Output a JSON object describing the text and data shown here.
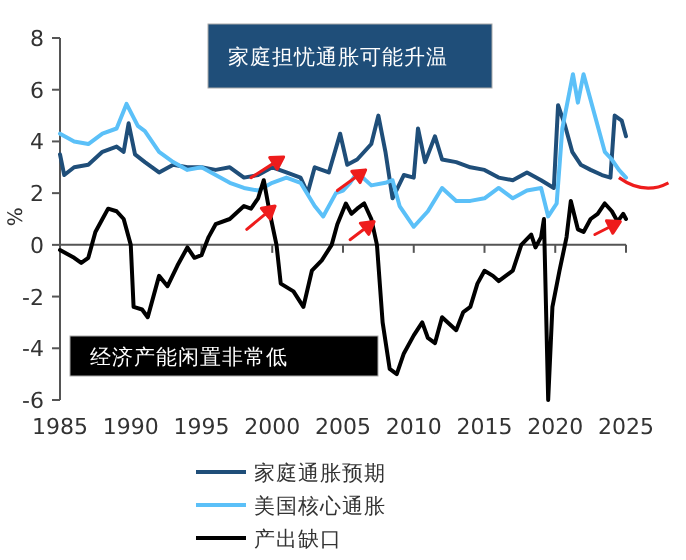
{
  "chart_data": {
    "type": "line",
    "ylabel": "%",
    "annotations": [
      "家庭担忧通胀可能升温",
      "经济产能闲置非常低"
    ],
    "xlim": [
      1985,
      2025
    ],
    "xticks": [
      1985,
      1990,
      1995,
      2000,
      2005,
      2010,
      2015,
      2020,
      2025
    ],
    "ylim": [
      -6,
      8
    ],
    "yticks": [
      -6,
      -4,
      -2,
      0,
      2,
      4,
      6,
      8
    ],
    "legend": "bottom",
    "line_style": "solid",
    "series": [
      {
        "name": "家庭通胀预期",
        "color": "#1f4e79",
        "x": [
          1985,
          1985.3,
          1986,
          1987,
          1988,
          1989,
          1989.5,
          1989.85,
          1990.3,
          1991,
          1992,
          1993,
          1994,
          1995,
          1996,
          1997,
          1998,
          1999,
          2000,
          2001,
          2002,
          2002.5,
          2003,
          2004,
          2004.8,
          2005.3,
          2006,
          2007,
          2007.5,
          2008,
          2008.5,
          2009.3,
          2010,
          2010.3,
          2010.8,
          2011.5,
          2012,
          2013,
          2014,
          2015,
          2016,
          2017,
          2018,
          2019,
          2019.9,
          2020.2,
          2020.7,
          2021.2,
          2021.8,
          2022.5,
          2023.3,
          2023.9,
          2024.2,
          2024.7,
          2025
        ],
        "values": [
          3.5,
          2.7,
          3.0,
          3.1,
          3.6,
          3.8,
          3.6,
          4.7,
          3.5,
          3.2,
          2.8,
          3.1,
          3.0,
          3.0,
          2.9,
          3.0,
          2.6,
          2.7,
          3.0,
          2.8,
          2.6,
          2.0,
          3.0,
          2.8,
          4.3,
          3.1,
          3.3,
          3.9,
          5.0,
          3.6,
          1.8,
          2.7,
          2.6,
          4.5,
          3.2,
          4.2,
          3.3,
          3.2,
          3.0,
          2.9,
          2.6,
          2.5,
          2.8,
          2.5,
          2.2,
          5.4,
          4.6,
          3.6,
          3.1,
          2.9,
          2.7,
          2.6,
          5.0,
          4.8,
          4.2
        ]
      },
      {
        "name": "美国核心通胀",
        "color": "#5bc0f8",
        "x": [
          1985,
          1986,
          1987,
          1988,
          1989,
          1989.7,
          1990.5,
          1991,
          1992,
          1993,
          1994,
          1995,
          1996,
          1997,
          1998,
          1999,
          2000,
          2001,
          2002,
          2003,
          2003.6,
          2004.5,
          2005,
          2005.5,
          2006,
          2007,
          2008,
          2008.5,
          2009,
          2010,
          2011,
          2012,
          2013,
          2014,
          2015,
          2016,
          2017,
          2018,
          2019,
          2019.5,
          2020.1,
          2020.5,
          2021.25,
          2021.6,
          2022,
          2022.8,
          2023.5,
          2024,
          2024.5,
          2025
        ],
        "values": [
          4.3,
          4.0,
          3.9,
          4.3,
          4.5,
          5.45,
          4.6,
          4.4,
          3.6,
          3.2,
          2.9,
          3.0,
          2.7,
          2.4,
          2.2,
          2.1,
          2.4,
          2.6,
          2.4,
          1.5,
          1.1,
          2.0,
          2.1,
          2.4,
          2.8,
          2.3,
          2.4,
          2.5,
          1.5,
          0.7,
          1.3,
          2.2,
          1.7,
          1.7,
          1.8,
          2.2,
          1.8,
          2.1,
          2.2,
          1.1,
          1.6,
          4.5,
          6.6,
          5.5,
          6.6,
          5.0,
          3.6,
          3.3,
          2.9,
          2.6
        ]
      },
      {
        "name": "产出缺口",
        "color": "#000000",
        "x": [
          1985,
          1986,
          1986.5,
          1987,
          1987.5,
          1988,
          1988.4,
          1989,
          1989.5,
          1990.0,
          1990.2,
          1990.8,
          1991.2,
          1992,
          1992.6,
          1993.3,
          1994,
          1994.5,
          1995,
          1995.5,
          1996,
          1997,
          1998,
          1998.5,
          1999,
          1999.4,
          1999.8,
          2000.3,
          2000.6,
          2001.5,
          2002.2,
          2002.8,
          2003.5,
          2004.2,
          2004.6,
          2005.2,
          2005.6,
          2006,
          2006.5,
          2007.0,
          2007.4,
          2007.8,
          2008.3,
          2008.8,
          2009.3,
          2010,
          2010.6,
          2011,
          2011.5,
          2012,
          2013,
          2013.5,
          2014,
          2014.5,
          2015,
          2015.6,
          2016,
          2016.5,
          2017,
          2017.6,
          2018.3,
          2018.6,
          2019,
          2019.2,
          2019.5,
          2019.8,
          2020.3,
          2020.8,
          2021.1,
          2021.6,
          2022,
          2022.5,
          2023,
          2023.5,
          2024,
          2024.4,
          2024.8,
          2025
        ],
        "values": [
          -0.2,
          -0.5,
          -0.7,
          -0.5,
          0.5,
          1.0,
          1.4,
          1.3,
          1.0,
          0.0,
          -2.4,
          -2.5,
          -2.8,
          -1.2,
          -1.6,
          -0.8,
          -0.1,
          -0.5,
          -0.4,
          0.3,
          0.8,
          1.0,
          1.5,
          1.4,
          1.8,
          2.5,
          1.3,
          0.0,
          -1.5,
          -1.8,
          -2.4,
          -1.0,
          -0.6,
          0.0,
          0.8,
          1.6,
          1.2,
          1.4,
          1.6,
          1.0,
          0.0,
          -3.0,
          -4.8,
          -5.0,
          -4.2,
          -3.5,
          -3.0,
          -3.6,
          -3.8,
          -2.8,
          -3.3,
          -2.6,
          -2.4,
          -1.5,
          -1.0,
          -1.2,
          -1.4,
          -1.2,
          -1.0,
          0.0,
          0.4,
          -0.1,
          0.3,
          1.0,
          -6.0,
          -2.4,
          -1.0,
          0.3,
          1.7,
          0.6,
          0.5,
          1.0,
          1.2,
          1.6,
          1.3,
          0.9,
          1.2,
          1.0
        ]
      }
    ]
  }
}
